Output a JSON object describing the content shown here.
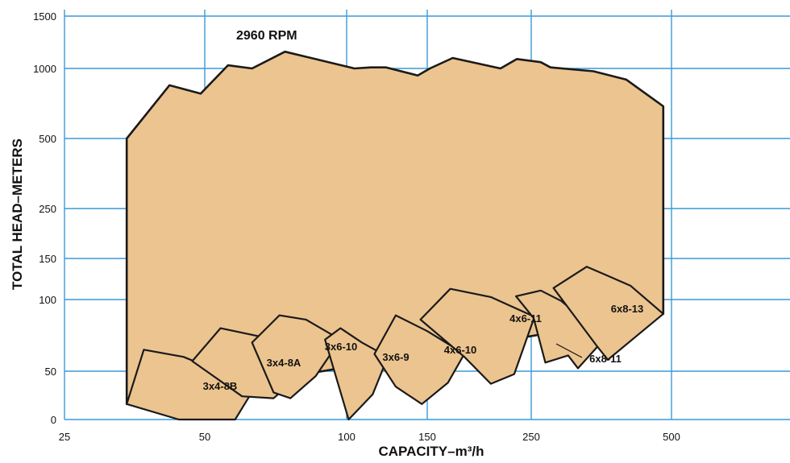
{
  "chart_data": {
    "type": "area",
    "title": "2960 RPM",
    "xlabel": "CAPACITY–m³/h",
    "ylabel": "TOTAL HEAD–METERS",
    "x_ticks": [
      "25",
      "50",
      "100",
      "150",
      "250",
      "500"
    ],
    "y_ticks": [
      "0",
      "50",
      "100",
      "150",
      "250",
      "500",
      "1000",
      "1500"
    ],
    "grid": true,
    "fill_color": "#ECC48F",
    "grid_color": "#3A9AD9",
    "outline_color": "#1a1a1a",
    "envelope": {
      "name": "2960 RPM",
      "points": [
        [
          34,
          16
        ],
        [
          34,
          500
        ],
        [
          42,
          880
        ],
        [
          49,
          820
        ],
        [
          56,
          1030
        ],
        [
          63,
          1000
        ],
        [
          74,
          1160
        ],
        [
          104,
          1000
        ],
        [
          113,
          1010
        ],
        [
          122,
          1010
        ],
        [
          143,
          950
        ],
        [
          152,
          1000
        ],
        [
          170,
          1100
        ],
        [
          215,
          1000
        ],
        [
          233,
          1090
        ],
        [
          262,
          1060
        ],
        [
          275,
          1010
        ],
        [
          340,
          980
        ],
        [
          400,
          920
        ],
        [
          480,
          730
        ],
        [
          480,
          90
        ],
        [
          34,
          16
        ]
      ]
    },
    "series": [
      {
        "name": "3x4-8B",
        "points": [
          [
            37,
            65
          ],
          [
            45,
            60
          ],
          [
            56,
            46
          ],
          [
            62,
            23
          ],
          [
            58,
            0
          ],
          [
            44,
            0
          ],
          [
            34,
            16
          ],
          [
            37,
            65
          ]
        ]
      },
      {
        "name": "3x4-8A",
        "points": [
          [
            47,
            57
          ],
          [
            54,
            80
          ],
          [
            66,
            74
          ],
          [
            82,
            51
          ],
          [
            70,
            22
          ],
          [
            60,
            24
          ],
          [
            47,
            57
          ]
        ]
      },
      {
        "name": "3x6-10",
        "points": [
          [
            63,
            70
          ],
          [
            72,
            89
          ],
          [
            82,
            86
          ],
          [
            97,
            72
          ],
          [
            86,
            45
          ],
          [
            76,
            22
          ],
          [
            70,
            28
          ],
          [
            63,
            70
          ]
        ]
      },
      {
        "name": "3x6-9",
        "points": [
          [
            90,
            72
          ],
          [
            97,
            80
          ],
          [
            108,
            70
          ],
          [
            123,
            60
          ],
          [
            114,
            26
          ],
          [
            101,
            0
          ],
          [
            90,
            72
          ]
        ]
      },
      {
        "name": "4x6-10",
        "points": [
          [
            115,
            62
          ],
          [
            128,
            89
          ],
          [
            150,
            78
          ],
          [
            180,
            62
          ],
          [
            166,
            38
          ],
          [
            146,
            16
          ],
          [
            128,
            34
          ],
          [
            115,
            62
          ]
        ]
      },
      {
        "name": "4x6-11",
        "points": [
          [
            145,
            86
          ],
          [
            168,
            113
          ],
          [
            205,
            103
          ],
          [
            254,
            88
          ],
          [
            230,
            47
          ],
          [
            205,
            37
          ],
          [
            180,
            60
          ],
          [
            145,
            86
          ]
        ]
      },
      {
        "name": "6x8-11",
        "points": [
          [
            232,
            104
          ],
          [
            262,
            111
          ],
          [
            290,
            99
          ],
          [
            360,
            73
          ],
          [
            315,
            52
          ],
          [
            300,
            61
          ],
          [
            268,
            56
          ],
          [
            253,
            87
          ],
          [
            232,
            104
          ]
        ]
      },
      {
        "name": "6x8-13",
        "points": [
          [
            279,
            114
          ],
          [
            329,
            140
          ],
          [
            408,
            117
          ],
          [
            480,
            90
          ],
          [
            365,
            58
          ],
          [
            345,
            68
          ],
          [
            279,
            114
          ]
        ]
      }
    ]
  }
}
